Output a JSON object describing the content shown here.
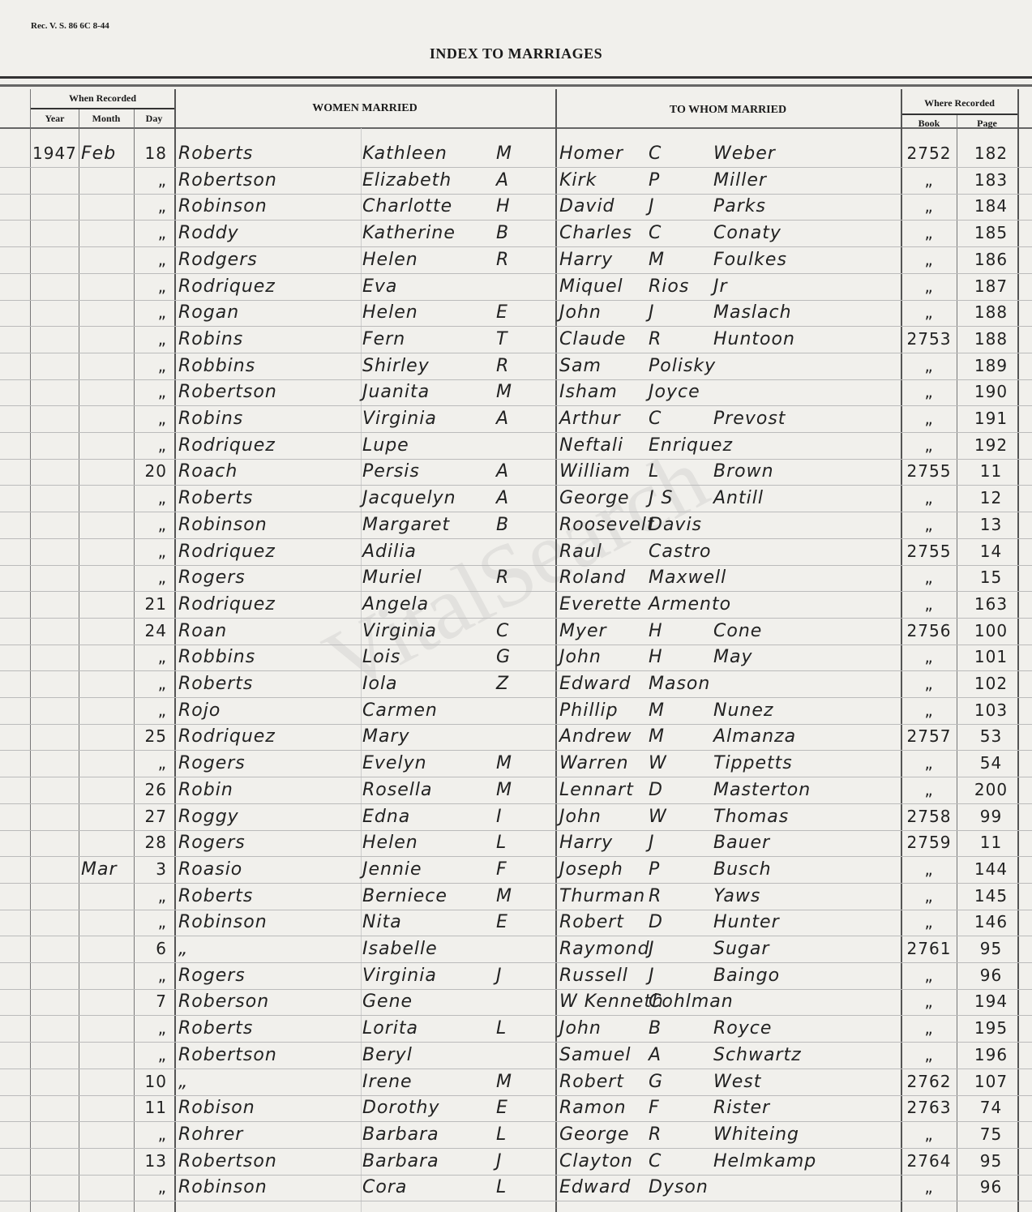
{
  "form_code": "Rec. V. S. 86 6C 8-44",
  "title": "INDEX TO MARRIAGES",
  "watermark": "VitalSearch",
  "headers": {
    "when_recorded": "When Recorded",
    "year": "Year",
    "month": "Month",
    "day": "Day",
    "women_married": "WOMEN MARRIED",
    "to_whom_married": "TO WHOM MARRIED",
    "where_recorded": "Where Recorded",
    "book": "Book",
    "page": "Page"
  },
  "rows": [
    {
      "year": "1947",
      "month": "Feb",
      "day": "18",
      "surname": "Roberts",
      "given": "Kathleen",
      "middle": "M",
      "groom_first": "Homer",
      "groom_middle": "C",
      "groom_last": "Weber",
      "book": "2752",
      "page": "182"
    },
    {
      "year": "",
      "month": "",
      "day": "„",
      "surname": "Robertson",
      "given": "Elizabeth",
      "middle": "A",
      "groom_first": "Kirk",
      "groom_middle": "P",
      "groom_last": "Miller",
      "book": "„",
      "page": "183"
    },
    {
      "year": "",
      "month": "",
      "day": "„",
      "surname": "Robinson",
      "given": "Charlotte",
      "middle": "H",
      "groom_first": "David",
      "groom_middle": "J",
      "groom_last": "Parks",
      "book": "„",
      "page": "184"
    },
    {
      "year": "",
      "month": "",
      "day": "„",
      "surname": "Roddy",
      "given": "Katherine",
      "middle": "B",
      "groom_first": "Charles",
      "groom_middle": "C",
      "groom_last": "Conaty",
      "book": "„",
      "page": "185"
    },
    {
      "year": "",
      "month": "",
      "day": "„",
      "surname": "Rodgers",
      "given": "Helen",
      "middle": "R",
      "groom_first": "Harry",
      "groom_middle": "M",
      "groom_last": "Foulkes",
      "book": "„",
      "page": "186"
    },
    {
      "year": "",
      "month": "",
      "day": "„",
      "surname": "Rodriquez",
      "given": "Eva",
      "middle": "",
      "groom_first": "Miquel",
      "groom_middle": "Rios",
      "groom_last": "Jr",
      "book": "„",
      "page": "187"
    },
    {
      "year": "",
      "month": "",
      "day": "„",
      "surname": "Rogan",
      "given": "Helen",
      "middle": "E",
      "groom_first": "John",
      "groom_middle": "J",
      "groom_last": "Maslach",
      "book": "„",
      "page": "188"
    },
    {
      "year": "",
      "month": "",
      "day": "„",
      "surname": "Robins",
      "given": "Fern",
      "middle": "T",
      "groom_first": "Claude",
      "groom_middle": "R",
      "groom_last": "Huntoon",
      "book": "2753",
      "page": "188"
    },
    {
      "year": "",
      "month": "",
      "day": "„",
      "surname": "Robbins",
      "given": "Shirley",
      "middle": "R",
      "groom_first": "Sam",
      "groom_middle": "Polisky",
      "groom_last": "",
      "book": "„",
      "page": "189"
    },
    {
      "year": "",
      "month": "",
      "day": "„",
      "surname": "Robertson",
      "given": "Juanita",
      "middle": "M",
      "groom_first": "Isham",
      "groom_middle": "Joyce",
      "groom_last": "",
      "book": "„",
      "page": "190"
    },
    {
      "year": "",
      "month": "",
      "day": "„",
      "surname": "Robins",
      "given": "Virginia",
      "middle": "A",
      "groom_first": "Arthur",
      "groom_middle": "C",
      "groom_last": "Prevost",
      "book": "„",
      "page": "191"
    },
    {
      "year": "",
      "month": "",
      "day": "„",
      "surname": "Rodriquez",
      "given": "Lupe",
      "middle": "",
      "groom_first": "Neftali",
      "groom_middle": "Enriquez",
      "groom_last": "",
      "book": "„",
      "page": "192"
    },
    {
      "year": "",
      "month": "",
      "day": "20",
      "surname": "Roach",
      "given": "Persis",
      "middle": "A",
      "groom_first": "William",
      "groom_middle": "L",
      "groom_last": "Brown",
      "book": "2755",
      "page": "11"
    },
    {
      "year": "",
      "month": "",
      "day": "„",
      "surname": "Roberts",
      "given": "Jacquelyn",
      "middle": "A",
      "groom_first": "George",
      "groom_middle": "J S",
      "groom_last": "Antill",
      "book": "„",
      "page": "12"
    },
    {
      "year": "",
      "month": "",
      "day": "„",
      "surname": "Robinson",
      "given": "Margaret",
      "middle": "B",
      "groom_first": "Roosevelt",
      "groom_middle": "Davis",
      "groom_last": "",
      "book": "„",
      "page": "13"
    },
    {
      "year": "",
      "month": "",
      "day": "„",
      "surname": "Rodriquez",
      "given": "Adilia",
      "middle": "",
      "groom_first": "Raul",
      "groom_middle": "Castro",
      "groom_last": "",
      "book": "2755",
      "page": "14"
    },
    {
      "year": "",
      "month": "",
      "day": "„",
      "surname": "Rogers",
      "given": "Muriel",
      "middle": "R",
      "groom_first": "Roland",
      "groom_middle": "Maxwell",
      "groom_last": "",
      "book": "„",
      "page": "15"
    },
    {
      "year": "",
      "month": "",
      "day": "21",
      "surname": "Rodriquez",
      "given": "Angela",
      "middle": "",
      "groom_first": "Everette",
      "groom_middle": "Armento",
      "groom_last": "",
      "book": "„",
      "page": "163"
    },
    {
      "year": "",
      "month": "",
      "day": "24",
      "surname": "Roan",
      "given": "Virginia",
      "middle": "C",
      "groom_first": "Myer",
      "groom_middle": "H",
      "groom_last": "Cone",
      "book": "2756",
      "page": "100"
    },
    {
      "year": "",
      "month": "",
      "day": "„",
      "surname": "Robbins",
      "given": "Lois",
      "middle": "G",
      "groom_first": "John",
      "groom_middle": "H",
      "groom_last": "May",
      "book": "„",
      "page": "101"
    },
    {
      "year": "",
      "month": "",
      "day": "„",
      "surname": "Roberts",
      "given": "Iola",
      "middle": "Z",
      "groom_first": "Edward",
      "groom_middle": "Mason",
      "groom_last": "",
      "book": "„",
      "page": "102"
    },
    {
      "year": "",
      "month": "",
      "day": "„",
      "surname": "Rojo",
      "given": "Carmen",
      "middle": "",
      "groom_first": "Phillip",
      "groom_middle": "M",
      "groom_last": "Nunez",
      "book": "„",
      "page": "103"
    },
    {
      "year": "",
      "month": "",
      "day": "25",
      "surname": "Rodriquez",
      "given": "Mary",
      "middle": "",
      "groom_first": "Andrew",
      "groom_middle": "M",
      "groom_last": "Almanza",
      "book": "2757",
      "page": "53"
    },
    {
      "year": "",
      "month": "",
      "day": "„",
      "surname": "Rogers",
      "given": "Evelyn",
      "middle": "M",
      "groom_first": "Warren",
      "groom_middle": "W",
      "groom_last": "Tippetts",
      "book": "„",
      "page": "54"
    },
    {
      "year": "",
      "month": "",
      "day": "26",
      "surname": "Robin",
      "given": "Rosella",
      "middle": "M",
      "groom_first": "Lennart",
      "groom_middle": "D",
      "groom_last": "Masterton",
      "book": "„",
      "page": "200"
    },
    {
      "year": "",
      "month": "",
      "day": "27",
      "surname": "Roggy",
      "given": "Edna",
      "middle": "I",
      "groom_first": "John",
      "groom_middle": "W",
      "groom_last": "Thomas",
      "book": "2758",
      "page": "99"
    },
    {
      "year": "",
      "month": "",
      "day": "28",
      "surname": "Rogers",
      "given": "Helen",
      "middle": "L",
      "groom_first": "Harry",
      "groom_middle": "J",
      "groom_last": "Bauer",
      "book": "2759",
      "page": "11"
    },
    {
      "year": "",
      "month": "Mar",
      "day": "3",
      "surname": "Roasio",
      "given": "Jennie",
      "middle": "F",
      "groom_first": "Joseph",
      "groom_middle": "P",
      "groom_last": "Busch",
      "book": "„",
      "page": "144"
    },
    {
      "year": "",
      "month": "",
      "day": "„",
      "surname": "Roberts",
      "given": "Berniece",
      "middle": "M",
      "groom_first": "Thurman",
      "groom_middle": "R",
      "groom_last": "Yaws",
      "book": "„",
      "page": "145"
    },
    {
      "year": "",
      "month": "",
      "day": "„",
      "surname": "Robinson",
      "given": "Nita",
      "middle": "E",
      "groom_first": "Robert",
      "groom_middle": "D",
      "groom_last": "Hunter",
      "book": "„",
      "page": "146"
    },
    {
      "year": "",
      "month": "",
      "day": "6",
      "surname": "„",
      "given": "Isabelle",
      "middle": "",
      "groom_first": "Raymond",
      "groom_middle": "J",
      "groom_last": "Sugar",
      "book": "2761",
      "page": "95"
    },
    {
      "year": "",
      "month": "",
      "day": "„",
      "surname": "Rogers",
      "given": "Virginia",
      "middle": "J",
      "groom_first": "Russell",
      "groom_middle": "J",
      "groom_last": "Baingo",
      "book": "„",
      "page": "96"
    },
    {
      "year": "",
      "month": "",
      "day": "7",
      "surname": "Roberson",
      "given": "Gene",
      "middle": "",
      "groom_first": "W Kenneth",
      "groom_middle": "Cohlman",
      "groom_last": "",
      "book": "„",
      "page": "194"
    },
    {
      "year": "",
      "month": "",
      "day": "„",
      "surname": "Roberts",
      "given": "Lorita",
      "middle": "L",
      "groom_first": "John",
      "groom_middle": "B",
      "groom_last": "Royce",
      "book": "„",
      "page": "195"
    },
    {
      "year": "",
      "month": "",
      "day": "„",
      "surname": "Robertson",
      "given": "Beryl",
      "middle": "",
      "groom_first": "Samuel",
      "groom_middle": "A",
      "groom_last": "Schwartz",
      "book": "„",
      "page": "196"
    },
    {
      "year": "",
      "month": "",
      "day": "10",
      "surname": "„",
      "given": "Irene",
      "middle": "M",
      "groom_first": "Robert",
      "groom_middle": "G",
      "groom_last": "West",
      "book": "2762",
      "page": "107"
    },
    {
      "year": "",
      "month": "",
      "day": "11",
      "surname": "Robison",
      "given": "Dorothy",
      "middle": "E",
      "groom_first": "Ramon",
      "groom_middle": "F",
      "groom_last": "Rister",
      "book": "2763",
      "page": "74"
    },
    {
      "year": "",
      "month": "",
      "day": "„",
      "surname": "Rohrer",
      "given": "Barbara",
      "middle": "L",
      "groom_first": "George",
      "groom_middle": "R",
      "groom_last": "Whiteing",
      "book": "„",
      "page": "75"
    },
    {
      "year": "",
      "month": "",
      "day": "13",
      "surname": "Robertson",
      "given": "Barbara",
      "middle": "J",
      "groom_first": "Clayton",
      "groom_middle": "C",
      "groom_last": "Helmkamp",
      "book": "2764",
      "page": "95"
    },
    {
      "year": "",
      "month": "",
      "day": "„",
      "surname": "Robinson",
      "given": "Cora",
      "middle": "L",
      "groom_first": "Edward",
      "groom_middle": "Dyson",
      "groom_last": "",
      "book": "„",
      "page": "96"
    }
  ]
}
